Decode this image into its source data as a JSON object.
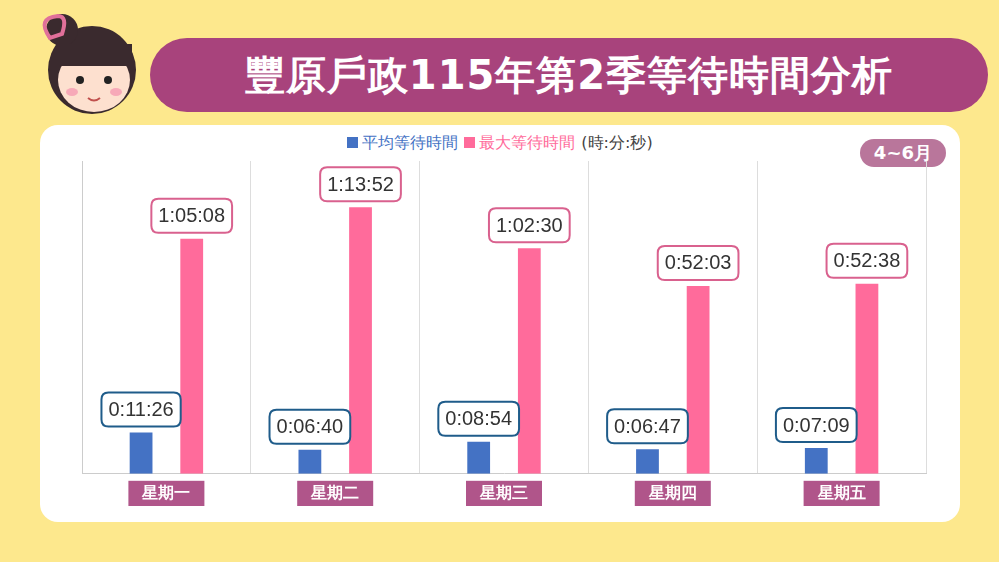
{
  "chart_data": {
    "type": "bar",
    "title": "豐原戶政115年第2季等待時間分析",
    "subtitle": "4~6月",
    "annotation": "(時:分:秒)",
    "categories": [
      "星期一",
      "星期二",
      "星期三",
      "星期四",
      "星期五"
    ],
    "series": [
      {
        "name": "平均等待時間",
        "color": "#4472c4",
        "values": [
          686,
          400,
          534,
          407,
          429
        ],
        "value_labels": [
          "0:11:26",
          "0:06:40",
          "0:08:54",
          "0:06:47",
          "0:07:09"
        ]
      },
      {
        "name": "最大等待時間",
        "color": "#ff6b9b",
        "values": [
          3908,
          4432,
          3750,
          3123,
          3158
        ],
        "value_labels": [
          "1:05:08",
          "1:13:52",
          "1:02:30",
          "0:52:03",
          "0:52:38"
        ]
      }
    ],
    "ylim": [
      0,
      5200
    ],
    "grid": true,
    "legend": "top",
    "data_labels": true,
    "tick_labels": "x"
  }
}
